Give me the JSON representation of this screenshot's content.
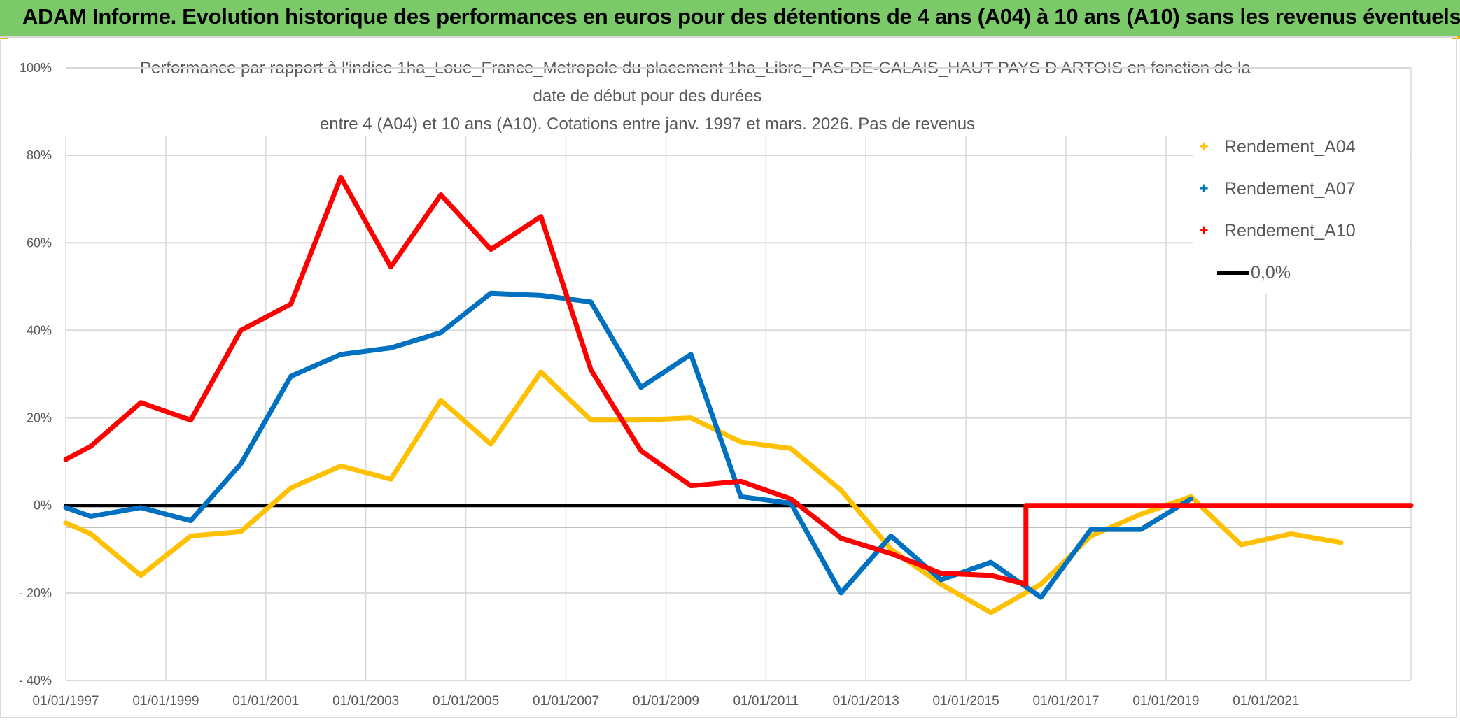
{
  "header": {
    "title": "ADAM Informe. Evolution historique des performances en euros pour des détentions de 4 ans (A04) à 10 ans (A10) sans les revenus éventuels",
    "background_color": "#7cc96a",
    "accent_color": "#e8b400"
  },
  "chart_data": {
    "type": "line",
    "title_lines": [
      "Performance par rapport à l'indice 1ha_Loue_France_Metropole  du placement 1ha_Libre_PAS-DE-CALAIS_HAUT PAYS D ARTOIS en fonction de la",
      "date de début pour des durées",
      "entre 4 (A04) et 10 ans (A10). Cotations entre janv. 1997 et mars. 2026. Pas de revenus"
    ],
    "x_unit": "year",
    "xlim": [
      1997,
      2023.9
    ],
    "x_tick_values": [
      1997,
      1999,
      2001,
      2003,
      2005,
      2007,
      2009,
      2011,
      2013,
      2015,
      2017,
      2019,
      2021
    ],
    "x_tick_labels": [
      "01/01/1997",
      "01/01/1999",
      "01/01/2001",
      "01/01/2003",
      "01/01/2005",
      "01/01/2007",
      "01/01/2009",
      "01/01/2011",
      "01/01/2013",
      "01/01/2015",
      "01/01/2017",
      "01/01/2019",
      "01/01/2021"
    ],
    "ylim": [
      -40,
      100
    ],
    "y_tick_values": [
      100,
      80,
      60,
      40,
      20,
      0,
      -20,
      -40
    ],
    "y_tick_labels": [
      "100%",
      "80%",
      "60%",
      "40%",
      "20%",
      "0%",
      "- 20%",
      "- 40%"
    ],
    "grid": true,
    "legend_position": "top-right",
    "series": [
      {
        "name": "Rendement_A04",
        "color": "#ffc000",
        "points": [
          [
            1997.0,
            -4
          ],
          [
            1997.5,
            -6.5
          ],
          [
            1998.5,
            -16
          ],
          [
            1999.5,
            -7
          ],
          [
            2000.5,
            -6
          ],
          [
            2001.5,
            4
          ],
          [
            2002.5,
            9
          ],
          [
            2003.5,
            6
          ],
          [
            2004.5,
            24
          ],
          [
            2005.5,
            14
          ],
          [
            2006.5,
            30.5
          ],
          [
            2007.5,
            19.5
          ],
          [
            2008.5,
            19.5
          ],
          [
            2009.5,
            20
          ],
          [
            2010.5,
            14.5
          ],
          [
            2011.5,
            13
          ],
          [
            2012.5,
            3.5
          ],
          [
            2013.5,
            -10
          ],
          [
            2014.5,
            -18
          ],
          [
            2015.5,
            -24.5
          ],
          [
            2016.5,
            -18
          ],
          [
            2017.5,
            -7
          ],
          [
            2018.5,
            -2
          ],
          [
            2019.5,
            2
          ],
          [
            2020.5,
            -9
          ],
          [
            2021.5,
            -6.5
          ],
          [
            2022.5,
            -8.5
          ]
        ]
      },
      {
        "name": "Rendement_A07",
        "color": "#0070c0",
        "points": [
          [
            1997.0,
            -0.5
          ],
          [
            1997.5,
            -2.5
          ],
          [
            1998.5,
            -0.5
          ],
          [
            1999.5,
            -3.5
          ],
          [
            2000.5,
            9.5
          ],
          [
            2001.5,
            29.5
          ],
          [
            2002.5,
            34.5
          ],
          [
            2003.5,
            36
          ],
          [
            2004.5,
            39.5
          ],
          [
            2005.5,
            48.5
          ],
          [
            2006.5,
            48
          ],
          [
            2007.5,
            46.5
          ],
          [
            2008.5,
            27
          ],
          [
            2009.5,
            34.5
          ],
          [
            2010.5,
            2
          ],
          [
            2011.5,
            0.5
          ],
          [
            2012.5,
            -20
          ],
          [
            2013.5,
            -7
          ],
          [
            2014.5,
            -17
          ],
          [
            2015.5,
            -13
          ],
          [
            2016.5,
            -21
          ],
          [
            2017.5,
            -5.5
          ],
          [
            2018.5,
            -5.5
          ],
          [
            2019.5,
            1.5
          ]
        ]
      },
      {
        "name": "Rendement_A10",
        "color": "#ff0000",
        "points": [
          [
            1997.0,
            10.5
          ],
          [
            1997.5,
            13.5
          ],
          [
            1998.5,
            23.5
          ],
          [
            1999.5,
            19.5
          ],
          [
            2000.5,
            40
          ],
          [
            2001.5,
            46
          ],
          [
            2002.5,
            75
          ],
          [
            2003.5,
            54.5
          ],
          [
            2004.5,
            71
          ],
          [
            2005.5,
            58.5
          ],
          [
            2006.5,
            66
          ],
          [
            2007.5,
            31
          ],
          [
            2008.5,
            12.5
          ],
          [
            2009.5,
            4.5
          ],
          [
            2010.5,
            5.5
          ],
          [
            2011.5,
            1.5
          ],
          [
            2012.5,
            -7.5
          ],
          [
            2013.5,
            -11
          ],
          [
            2014.5,
            -15.5
          ],
          [
            2015.5,
            -16
          ],
          [
            2016.2,
            -18
          ],
          [
            2016.2,
            0
          ],
          [
            2023.9,
            0
          ]
        ]
      },
      {
        "name": "0,0%",
        "color": "#000000",
        "points": [
          [
            1997.0,
            0
          ],
          [
            2023.9,
            0
          ]
        ]
      }
    ]
  }
}
